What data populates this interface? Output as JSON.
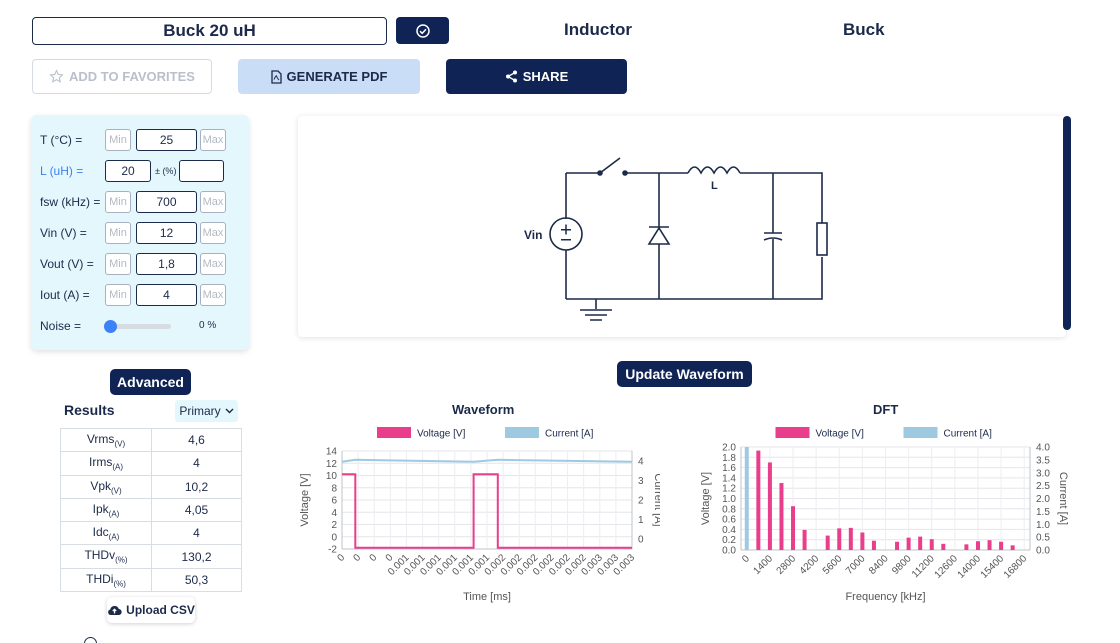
{
  "header": {
    "design_name": "Buck 20 uH",
    "component_type": "Inductor",
    "topology": "Buck"
  },
  "actions": {
    "favorites": "ADD TO FAVORITES",
    "pdf": "GENERATE PDF",
    "share": "SHARE"
  },
  "params": {
    "min_ph": "Min",
    "max_ph": "Max",
    "temp": {
      "label": "T (°C) =",
      "value": "25"
    },
    "inductance": {
      "label": "L (uH) =",
      "value": "20",
      "tol_label": "± (%)",
      "tol_value": ""
    },
    "fsw": {
      "label": "fsw (kHz) =",
      "value": "700"
    },
    "vin": {
      "label": "Vin (V) =",
      "value": "12"
    },
    "vout": {
      "label": "Vout (V) =",
      "value": "1,8"
    },
    "iout": {
      "label": "Iout (A) =",
      "value": "4"
    },
    "noise": {
      "label": "Noise =",
      "value": "0 %",
      "level": 0
    }
  },
  "schematic": {
    "vin_label": "Vin",
    "l_label": "L"
  },
  "buttons": {
    "advanced": "Advanced",
    "update": "Update Waveform",
    "upload": "Upload CSV"
  },
  "results": {
    "title": "Results",
    "selector": "Primary",
    "rows": [
      {
        "q": "Vrms",
        "u": "(V)",
        "v": "4,6"
      },
      {
        "q": "Irms",
        "u": "(A)",
        "v": "4"
      },
      {
        "q": "Vpk",
        "u": "(V)",
        "v": "10,2"
      },
      {
        "q": "Ipk",
        "u": "(A)",
        "v": "4,05"
      },
      {
        "q": "Idc",
        "u": "(A)",
        "v": "4"
      },
      {
        "q": "THDv",
        "u": "(%)",
        "v": "130,2"
      },
      {
        "q": "THDi",
        "u": "(%)",
        "v": "50,3"
      }
    ]
  },
  "colors": {
    "voltage": "#e83e8c",
    "current": "#9ecae1",
    "navy": "#0f2454"
  },
  "chart_data": [
    {
      "type": "line",
      "title": "Waveform",
      "xlabel": "Time [ms]",
      "ylabel": "Voltage [V]",
      "y2label": "Current [A]",
      "legend": [
        "Voltage [V]",
        "Current [A]"
      ],
      "legend_position": "top",
      "x_ticks": [
        "0",
        "0",
        "0",
        "0",
        "0.001",
        "0.001",
        "0.001",
        "0.001",
        "0.001",
        "0.001",
        "0.002",
        "0.002",
        "0.002",
        "0.002",
        "0.002",
        "0.002",
        "0.003",
        "0.003",
        "0.003"
      ],
      "ylim": [
        -2,
        14
      ],
      "y_ticks": [
        -2,
        0,
        2,
        4,
        6,
        8,
        10,
        12,
        14
      ],
      "y2lim": [
        -0.5,
        4.5
      ],
      "y2_ticks": [
        0,
        1,
        2,
        3,
        4
      ],
      "xlim": [
        0,
        0.00343
      ],
      "series": [
        {
          "name": "Voltage [V]",
          "axis": "left",
          "x": [
            0,
            0.000157,
            0.000157,
            0.001557,
            0.001557,
            0.001843,
            0.001843,
            0.00343
          ],
          "y": [
            10.2,
            10.2,
            -1.8,
            -1.8,
            10.2,
            10.2,
            -1.8,
            -1.8
          ]
        },
        {
          "name": "Current [A]",
          "axis": "right",
          "x": [
            0,
            0.000157,
            0.001557,
            0.001843,
            0.00343
          ],
          "y": [
            3.95,
            4.05,
            3.95,
            4.05,
            3.95
          ]
        }
      ],
      "grid": true
    },
    {
      "type": "bar",
      "title": "DFT",
      "xlabel": "Frequency [kHz]",
      "ylabel": "Voltage [V]",
      "y2label": "Current [A]",
      "legend": [
        "Voltage [V]",
        "Current [A]"
      ],
      "legend_position": "top",
      "x_ticks": [
        "0",
        "1400",
        "2800",
        "4200",
        "5600",
        "7000",
        "8400",
        "9800",
        "11200",
        "12600",
        "14000",
        "15400",
        "16800"
      ],
      "ylim": [
        0,
        2.0
      ],
      "y_ticks": [
        0,
        0.2,
        0.4,
        0.6,
        0.8,
        1.0,
        1.2,
        1.4,
        1.6,
        1.8,
        2.0
      ],
      "y2lim": [
        0,
        4.0
      ],
      "y2_ticks": [
        0,
        0.5,
        1.0,
        1.5,
        2.0,
        2.5,
        3.0,
        3.5,
        4.0
      ],
      "xlim": [
        -350,
        17150
      ],
      "series": [
        {
          "name": "Voltage [V]",
          "axis": "left",
          "x": [
            700,
            1400,
            2100,
            2800,
            3500,
            4900,
            5600,
            6300,
            7000,
            7700,
            9100,
            9800,
            10500,
            11200,
            11900,
            13300,
            14000,
            14700,
            15400,
            16100
          ],
          "values": [
            1.93,
            1.7,
            1.3,
            0.85,
            0.39,
            0.28,
            0.42,
            0.43,
            0.34,
            0.18,
            0.16,
            0.24,
            0.26,
            0.21,
            0.12,
            0.11,
            0.17,
            0.19,
            0.16,
            0.09
          ]
        },
        {
          "name": "Current [A]",
          "axis": "right",
          "x": [
            0
          ],
          "values": [
            4.0
          ]
        }
      ],
      "grid": true
    }
  ]
}
